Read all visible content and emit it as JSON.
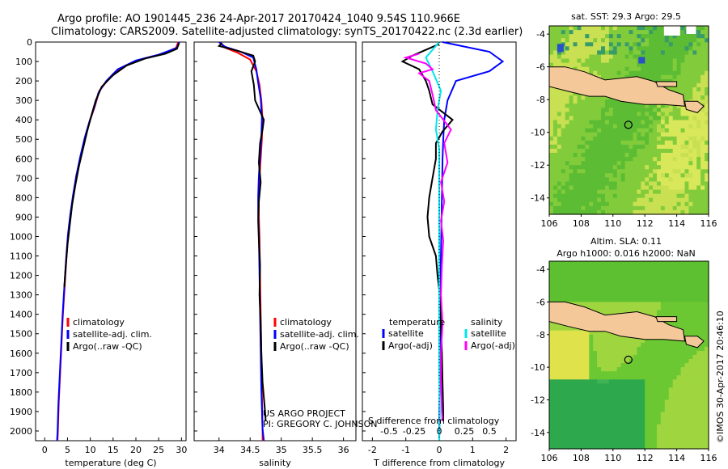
{
  "header": {
    "line1": "Argo profile: AO 1901445_236 24-Apr-2017 20170424_1040 9.54S 110.966E",
    "line2": "Climatology: CARS2009. Satellite-adjusted climatology: synTS_20170422.nc (2.3d earlier)"
  },
  "credit": "©IMOS 30-Apr-2017 20:46:10",
  "project": {
    "line1": "US ARGO PROJECT",
    "line2": "PI: GREGORY C. JOHNSON"
  },
  "colors": {
    "climatology": "#ff0000",
    "satellite": "#0000ff",
    "argo": "#000000",
    "sat_diff": "#00e5ee",
    "argo_salt_diff": "#ff00ff",
    "land": "#f5c89a",
    "ocean_green": "#6cc832"
  },
  "chart_data": [
    {
      "type": "line",
      "id": "temperature-profile",
      "xlabel": "temperature (deg C)",
      "ylabel": "",
      "xlim": [
        -2,
        31
      ],
      "ylim": [
        2050,
        0
      ],
      "xticks": [
        "0",
        "5",
        "10",
        "15",
        "20",
        "25",
        "30"
      ],
      "yticks": [
        "0",
        "100",
        "200",
        "300",
        "400",
        "500",
        "600",
        "700",
        "800",
        "900",
        "1000",
        "1100",
        "1200",
        "1300",
        "1400",
        "1500",
        "1600",
        "1700",
        "1800",
        "1900",
        "2000"
      ],
      "legend": [
        "climatology",
        "satellite-adj. clim.",
        "Argo(..raw -QC)"
      ],
      "series": [
        {
          "name": "climatology",
          "color": "#ff0000",
          "points": [
            [
              29.3,
              0
            ],
            [
              28.8,
              30
            ],
            [
              26,
              60
            ],
            [
              21,
              90
            ],
            [
              17,
              130
            ],
            [
              14,
              190
            ],
            [
              12,
              250
            ],
            [
              11,
              330
            ],
            [
              10,
              400
            ],
            [
              9,
              480
            ],
            [
              8,
              580
            ],
            [
              7,
              680
            ],
            [
              6.3,
              780
            ],
            [
              5.7,
              880
            ],
            [
              5.2,
              980
            ],
            [
              4.8,
              1100
            ],
            [
              4.4,
              1250
            ],
            [
              4,
              1400
            ],
            [
              3.7,
              1550
            ],
            [
              3.4,
              1700
            ],
            [
              3.1,
              1850
            ],
            [
              2.9,
              2000
            ],
            [
              2.8,
              2050
            ]
          ]
        },
        {
          "name": "satellite-adj. clim.",
          "color": "#0000ff",
          "points": [
            [
              29.5,
              0
            ],
            [
              29,
              30
            ],
            [
              25,
              65
            ],
            [
              20,
              95
            ],
            [
              16,
              140
            ],
            [
              13.5,
              200
            ],
            [
              11.8,
              260
            ],
            [
              10.8,
              340
            ],
            [
              9.8,
              410
            ],
            [
              8.8,
              490
            ],
            [
              7.8,
              590
            ],
            [
              6.9,
              690
            ],
            [
              6.2,
              790
            ],
            [
              5.6,
              890
            ],
            [
              5.1,
              990
            ],
            [
              4.7,
              1110
            ],
            [
              4.3,
              1260
            ],
            [
              3.9,
              1410
            ],
            [
              3.6,
              1560
            ],
            [
              3.3,
              1710
            ],
            [
              3,
              1860
            ],
            [
              2.8,
              2010
            ],
            [
              2.7,
              2050
            ]
          ]
        },
        {
          "name": "Argo(..raw -QC)",
          "color": "#000000",
          "points": [
            [
              29.5,
              5
            ],
            [
              29,
              35
            ],
            [
              26.5,
              60
            ],
            [
              22,
              85
            ],
            [
              18,
              120
            ],
            [
              15,
              170
            ],
            [
              12.5,
              230
            ],
            [
              11.2,
              300
            ],
            [
              10.2,
              380
            ],
            [
              9.3,
              460
            ],
            [
              8.4,
              550
            ],
            [
              7.5,
              640
            ],
            [
              6.7,
              740
            ],
            [
              6,
              840
            ],
            [
              5.5,
              940
            ],
            [
              5,
              1040
            ],
            [
              4.6,
              1160
            ],
            [
              4.3,
              1260
            ]
          ]
        }
      ]
    },
    {
      "type": "line",
      "id": "salinity-profile",
      "xlabel": "salinity",
      "ylabel": "",
      "xlim": [
        33.6,
        36.2
      ],
      "ylim": [
        2050,
        0
      ],
      "xticks": [
        "34",
        "34.5",
        "35",
        "35.5",
        "36"
      ],
      "legend": [
        "climatology",
        "satellite-adj. clim.",
        "Argo(..raw -QC)"
      ],
      "series": [
        {
          "name": "climatology",
          "color": "#ff0000",
          "points": [
            [
              34,
              0
            ],
            [
              34.1,
              30
            ],
            [
              34.3,
              55
            ],
            [
              34.5,
              90
            ],
            [
              34.6,
              150
            ],
            [
              34.65,
              220
            ],
            [
              34.68,
              300
            ],
            [
              34.7,
              400
            ],
            [
              34.69,
              500
            ],
            [
              34.67,
              600
            ],
            [
              34.65,
              700
            ],
            [
              34.64,
              800
            ],
            [
              34.64,
              900
            ],
            [
              34.65,
              1000
            ],
            [
              34.66,
              1200
            ],
            [
              34.67,
              1400
            ],
            [
              34.68,
              1600
            ],
            [
              34.69,
              1800
            ],
            [
              34.7,
              2000
            ],
            [
              34.7,
              2050
            ]
          ]
        },
        {
          "name": "satellite-adj. clim.",
          "color": "#0000ff",
          "points": [
            [
              34,
              0
            ],
            [
              34.1,
              25
            ],
            [
              34.35,
              50
            ],
            [
              34.55,
              80
            ],
            [
              34.6,
              140
            ],
            [
              34.63,
              210
            ],
            [
              34.67,
              290
            ],
            [
              34.69,
              390
            ],
            [
              34.68,
              490
            ],
            [
              34.66,
              590
            ],
            [
              34.64,
              690
            ],
            [
              34.63,
              790
            ],
            [
              34.63,
              890
            ],
            [
              34.64,
              990
            ],
            [
              34.65,
              1190
            ],
            [
              34.66,
              1390
            ],
            [
              34.67,
              1590
            ],
            [
              34.68,
              1790
            ],
            [
              34.7,
              1990
            ],
            [
              34.72,
              2050
            ]
          ]
        },
        {
          "name": "Argo(..raw -QC)",
          "color": "#000000",
          "points": [
            [
              34.05,
              5
            ],
            [
              34.0,
              20
            ],
            [
              34.3,
              45
            ],
            [
              34.55,
              70
            ],
            [
              34.58,
              100
            ],
            [
              34.52,
              150
            ],
            [
              34.56,
              220
            ],
            [
              34.58,
              300
            ],
            [
              34.72,
              400
            ],
            [
              34.7,
              450
            ],
            [
              34.66,
              520
            ],
            [
              34.64,
              620
            ],
            [
              34.67,
              720
            ],
            [
              34.64,
              820
            ],
            [
              34.63,
              920
            ],
            [
              34.64,
              1020
            ],
            [
              34.66,
              1150
            ],
            [
              34.65,
              1300
            ],
            [
              34.67,
              1450
            ],
            [
              34.68,
              1600
            ],
            [
              34.7,
              1750
            ],
            [
              34.74,
              1900
            ],
            [
              34.75,
              1950
            ]
          ]
        }
      ]
    },
    {
      "type": "line",
      "id": "difference-profile",
      "title_bottom": "S difference from climatology",
      "xlabel": "T difference from climatology",
      "xlim": [
        -2.3,
        2.3
      ],
      "ylim": [
        2050,
        0
      ],
      "xticks": [
        "-2",
        "-1",
        "0",
        "1",
        "2"
      ],
      "top_xticks": [
        [
          "-0.5",
          -1.5
        ],
        [
          "-0.25",
          -0.75
        ],
        [
          "0",
          0
        ],
        [
          "0.25",
          0.75
        ],
        [
          "0.5",
          1.5
        ]
      ],
      "legend_left_title": "temperature",
      "legend_right_title": "salinity",
      "legend": [
        "satellite",
        "Argo(-adj)",
        "satellite",
        "Argo(-adj)"
      ],
      "series": [
        {
          "name": "temperature satellite",
          "color": "#0000ff",
          "points": [
            [
              0.1,
              0
            ],
            [
              1.5,
              50
            ],
            [
              1.9,
              100
            ],
            [
              1.5,
              150
            ],
            [
              0.5,
              200
            ],
            [
              0.25,
              300
            ],
            [
              0.15,
              400
            ],
            [
              0.12,
              500
            ],
            [
              0.1,
              600
            ],
            [
              0.08,
              800
            ],
            [
              0.06,
              1000
            ],
            [
              0.04,
              1200
            ],
            [
              0.03,
              1400
            ],
            [
              0.02,
              1600
            ],
            [
              0.01,
              1800
            ],
            [
              0,
              2050
            ]
          ]
        },
        {
          "name": "temperature Argo(-adj)",
          "color": "#000000",
          "points": [
            [
              0,
              10
            ],
            [
              -0.8,
              70
            ],
            [
              -1.1,
              100
            ],
            [
              -0.6,
              140
            ],
            [
              -0.4,
              200
            ],
            [
              -0.3,
              250
            ],
            [
              -0.2,
              320
            ],
            [
              0.4,
              400
            ],
            [
              0.1,
              460
            ],
            [
              -0.1,
              520
            ],
            [
              -0.1,
              600
            ],
            [
              -0.2,
              700
            ],
            [
              -0.3,
              800
            ],
            [
              -0.35,
              900
            ],
            [
              -0.3,
              1000
            ],
            [
              -0.1,
              1100
            ],
            [
              -0.05,
              1200
            ],
            [
              0.02,
              1300
            ],
            [
              0.05,
              1450
            ],
            [
              0.08,
              1600
            ],
            [
              0.1,
              1750
            ],
            [
              0.12,
              1900
            ],
            [
              0.12,
              1950
            ]
          ]
        },
        {
          "name": "salinity satellite",
          "color": "#00e5ee",
          "points": [
            [
              0,
              0
            ],
            [
              -0.4,
              80
            ],
            [
              -0.2,
              150
            ],
            [
              0.05,
              250
            ],
            [
              -0.05,
              350
            ],
            [
              -0.1,
              450
            ],
            [
              0,
              550
            ],
            [
              0,
              700
            ],
            [
              0,
              900
            ],
            [
              0,
              1100
            ],
            [
              0,
              1400
            ],
            [
              0,
              1700
            ],
            [
              0.02,
              1900
            ],
            [
              0,
              2050
            ]
          ]
        },
        {
          "name": "salinity Argo(-adj)",
          "color": "#ff00ff",
          "points": [
            [
              -0.6,
              60
            ],
            [
              -1.0,
              80
            ],
            [
              -0.4,
              110
            ],
            [
              -0.2,
              140
            ],
            [
              -0.6,
              160
            ],
            [
              -0.3,
              200
            ],
            [
              -0.2,
              270
            ],
            [
              -0.1,
              350
            ],
            [
              0.35,
              450
            ],
            [
              0.15,
              520
            ],
            [
              0.25,
              620
            ],
            [
              0.05,
              720
            ],
            [
              0.15,
              820
            ],
            [
              0.05,
              920
            ],
            [
              0.12,
              1020
            ],
            [
              0.08,
              1150
            ],
            [
              0.05,
              1300
            ],
            [
              0.1,
              1450
            ],
            [
              0.05,
              1600
            ],
            [
              0.05,
              1750
            ],
            [
              0.08,
              1900
            ],
            [
              0.1,
              1950
            ]
          ]
        }
      ]
    },
    {
      "type": "heatmap",
      "id": "sst-map",
      "title": "sat. SST: 29.3 Argo: 29.5",
      "xlim": [
        106,
        116
      ],
      "ylim": [
        -15,
        -3.5
      ],
      "xticks": [
        "106",
        "108",
        "110",
        "112",
        "114",
        "116"
      ],
      "yticks": [
        "-4",
        "-6",
        "-8",
        "-10",
        "-12",
        "-14"
      ],
      "argo_position": [
        110.966,
        -9.54
      ]
    },
    {
      "type": "heatmap",
      "id": "sla-map",
      "title_line1": "Altim. SLA: 0.11",
      "title_line2": "Argo h1000: 0.016 h2000: NaN",
      "xlim": [
        106,
        116
      ],
      "ylim": [
        -15,
        -3.5
      ],
      "xticks": [
        "106",
        "108",
        "110",
        "112",
        "114",
        "116"
      ],
      "yticks": [
        "-4",
        "-6",
        "-8",
        "-10",
        "-12",
        "-14"
      ],
      "argo_position": [
        110.966,
        -9.54
      ]
    }
  ]
}
